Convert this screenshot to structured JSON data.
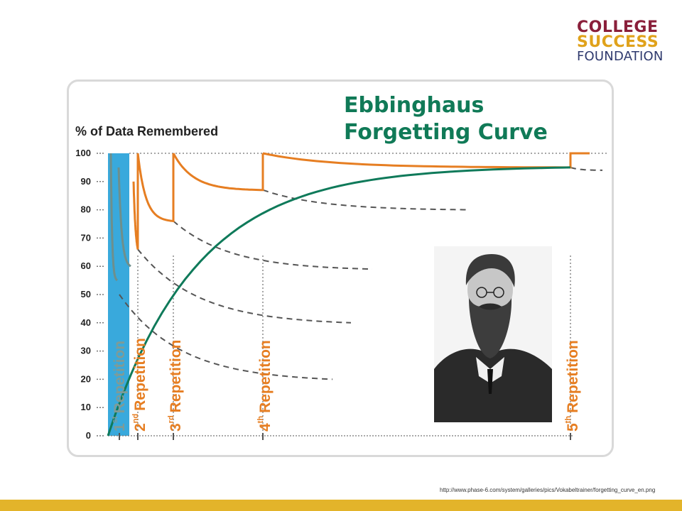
{
  "logo": {
    "line1": "COLLEGE",
    "line2": "SUCCESS",
    "line3": "FOUNDATION"
  },
  "source_url": "http://www.phase-6.com/system/galleries/pics/Vokabeltrainer/forgetting_curve_en.png",
  "colors": {
    "title_green": "#107a57",
    "retention_orange": "#e67e22",
    "baseline_green": "#0f7a5a",
    "first_repetition_blue": "#39a9dc",
    "footer_gold": "#e3b42a"
  },
  "portrait": {
    "icon": "man-portrait-photo"
  },
  "chart_data": {
    "type": "line",
    "title": [
      "Ebbinghaus",
      "Forgetting Curve"
    ],
    "ylabel": "% of Data Remembered",
    "ylim": [
      0,
      100
    ],
    "yticks": [
      "0",
      "10",
      "20",
      "30",
      "40",
      "50",
      "60",
      "70",
      "80",
      "90",
      "100"
    ],
    "grid": false,
    "repetitions": [
      {
        "ordinal": "1",
        "suffix": "st",
        "word": "Repetition",
        "x": 1,
        "style": "blue"
      },
      {
        "ordinal": "2",
        "suffix": "nd",
        "word": "Repetition",
        "x": 2,
        "style": "orange"
      },
      {
        "ordinal": "3",
        "suffix": "rd",
        "word": "Repetition",
        "x": 3,
        "style": "orange"
      },
      {
        "ordinal": "4",
        "suffix": "th",
        "word": "Repetition",
        "x": 4,
        "style": "orange"
      },
      {
        "ordinal": "5",
        "suffix": "th",
        "word": "Repetition",
        "x": 5,
        "style": "orange"
      }
    ],
    "series": [
      {
        "style": "orange-solid",
        "segments": [
          {
            "from_rep": 2,
            "to_rep": 3,
            "start": 100,
            "end": 76
          },
          {
            "from_rep": 3,
            "to_rep": 4,
            "start": 100,
            "end": 87
          },
          {
            "from_rep": 4,
            "to_rep": 5,
            "start": 100,
            "end": 95
          }
        ]
      },
      {
        "style": "first-interval-grey",
        "segments": [
          {
            "from_rep": 1,
            "to_rep": 2,
            "start": 100,
            "end": 55
          }
        ]
      },
      {
        "style": "green-solid",
        "points": [
          [
            0,
            0
          ],
          [
            1,
            52
          ],
          [
            2,
            66
          ],
          [
            3,
            76
          ],
          [
            4,
            87
          ],
          [
            5,
            95
          ]
        ]
      },
      {
        "style": "grey-dashed",
        "curves": [
          {
            "from_rep": 1,
            "start": 50,
            "end": 20
          },
          {
            "from_rep": 2,
            "start": 66,
            "end": 40
          },
          {
            "from_rep": 3,
            "start": 76,
            "end": 59
          },
          {
            "from_rep": 4,
            "start": 87,
            "end": 80
          },
          {
            "from_rep": 5,
            "start": 95,
            "end": 94
          }
        ]
      }
    ]
  }
}
